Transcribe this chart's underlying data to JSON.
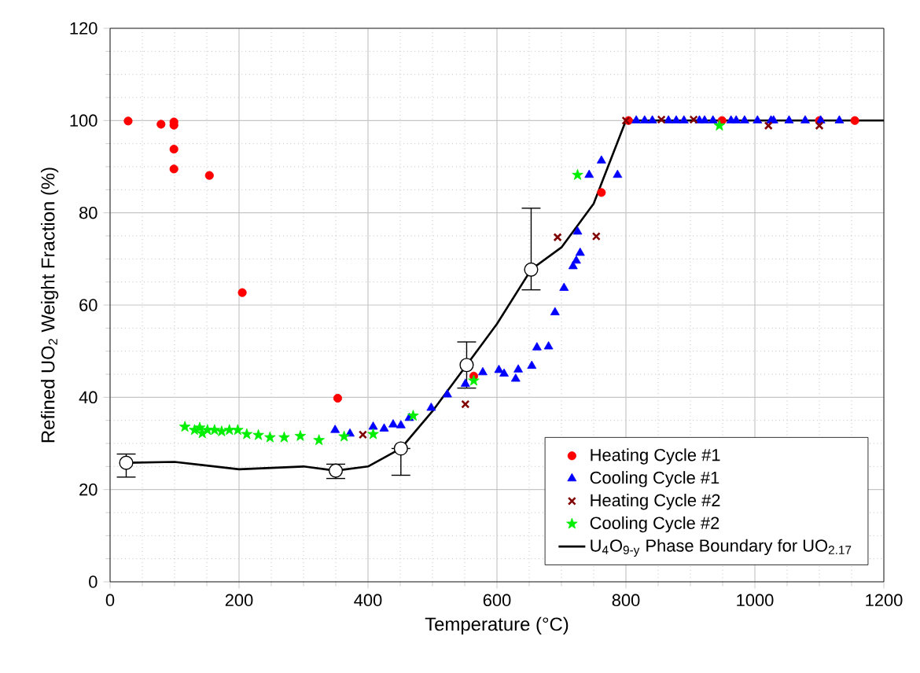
{
  "chart_data": {
    "type": "scatter",
    "xlabel": "Temperature (°C)",
    "ylabel": "Refined UO$_{2}$ Weight Fraction (%)",
    "xlim": [
      0,
      1200
    ],
    "ylim": [
      0,
      120
    ],
    "xticks": [
      0,
      200,
      400,
      600,
      800,
      1000,
      1200
    ],
    "yticks": [
      0,
      20,
      40,
      60,
      80,
      100,
      120
    ],
    "grid": true,
    "legend": "bottom right",
    "series": [
      {
        "name": "Heating Cycle #1",
        "marker": "circle",
        "color": "#ff0000",
        "x": [
          28,
          79,
          99,
          99,
          99,
          99,
          154,
          205,
          353,
          564,
          762,
          804,
          949,
          1100,
          1155
        ],
        "values": [
          99.9,
          99.2,
          99.7,
          99,
          93.8,
          89.5,
          88.1,
          62.7,
          39.8,
          44.6,
          84.4,
          100,
          100,
          100,
          100
        ]
      },
      {
        "name": "Cooling Cycle #1",
        "marker": "triangle",
        "color": "#0000ff",
        "x": [
          349,
          372,
          408,
          425,
          439,
          451,
          464,
          498,
          523,
          551,
          578,
          603,
          611,
          629,
          633,
          654,
          662,
          680,
          690,
          704,
          718,
          723,
          729,
          725,
          743,
          762,
          787,
          816,
          829,
          841,
          866,
          878,
          890,
          914,
          922,
          935,
          963,
          971,
          984,
          1004,
          1025,
          1029,
          1053,
          1078,
          1102,
          1131
        ],
        "values": [
          32.9,
          32.1,
          33.6,
          33.2,
          34.1,
          33.9,
          35.5,
          37.7,
          40.6,
          42.9,
          45.4,
          45.9,
          45.1,
          44,
          46,
          46.8,
          50.8,
          51,
          58.4,
          63.7,
          68.4,
          69.6,
          71.3,
          75.9,
          88.2,
          91.3,
          88.2,
          100,
          100,
          100,
          100,
          100,
          100,
          100,
          100,
          100,
          100,
          100,
          100,
          100,
          100,
          100,
          100,
          100,
          100,
          100
        ]
      },
      {
        "name": "Heating Cycle #2",
        "marker": "cross",
        "color": "#800000",
        "x": [
          392,
          551,
          694,
          754,
          800,
          855,
          905,
          1021,
          1100
        ],
        "values": [
          31.9,
          38.5,
          74.7,
          74.9,
          100,
          100.2,
          100.2,
          98.9,
          98.9
        ]
      },
      {
        "name": "Cooling Cycle #2",
        "marker": "star",
        "color": "#00ee00",
        "x": [
          116,
          131,
          139,
          143,
          151,
          162,
          173,
          185,
          198,
          212,
          230,
          248,
          270,
          295,
          324,
          363,
          408,
          470,
          564,
          725,
          945
        ],
        "values": [
          33.6,
          32.9,
          33.4,
          32.2,
          32.9,
          32.9,
          32.6,
          32.9,
          32.9,
          32,
          31.8,
          31.3,
          31.3,
          31.6,
          30.7,
          31.5,
          32,
          36,
          43.6,
          88.2,
          98.9
        ]
      },
      {
        "name": "U$_{4}$O$_{9-y}$ Phase Boundary for UO$_{2.17}$",
        "type": "line",
        "marker": "none",
        "color": "#000000",
        "x": [
          25,
          100,
          200,
          300,
          350,
          400,
          451,
          500,
          553,
          600,
          653,
          700,
          750,
          800,
          1200
        ],
        "values": [
          25.8,
          26,
          24.4,
          25,
          24.1,
          25,
          28.9,
          37,
          47,
          55.9,
          67.7,
          72.5,
          82,
          100,
          100
        ]
      },
      {
        "marker": "circle",
        "color": "#ffffff",
        "x": [
          25,
          350,
          451,
          553,
          653
        ],
        "values": [
          25.8,
          24.1,
          28.9,
          47,
          67.7
        ],
        "errors": [
          [
            22.7,
            27.7
          ],
          [
            22.4,
            25.5
          ],
          [
            23.1,
            28.9
          ],
          [
            42,
            52
          ],
          [
            63.3,
            81
          ]
        ]
      }
    ]
  }
}
